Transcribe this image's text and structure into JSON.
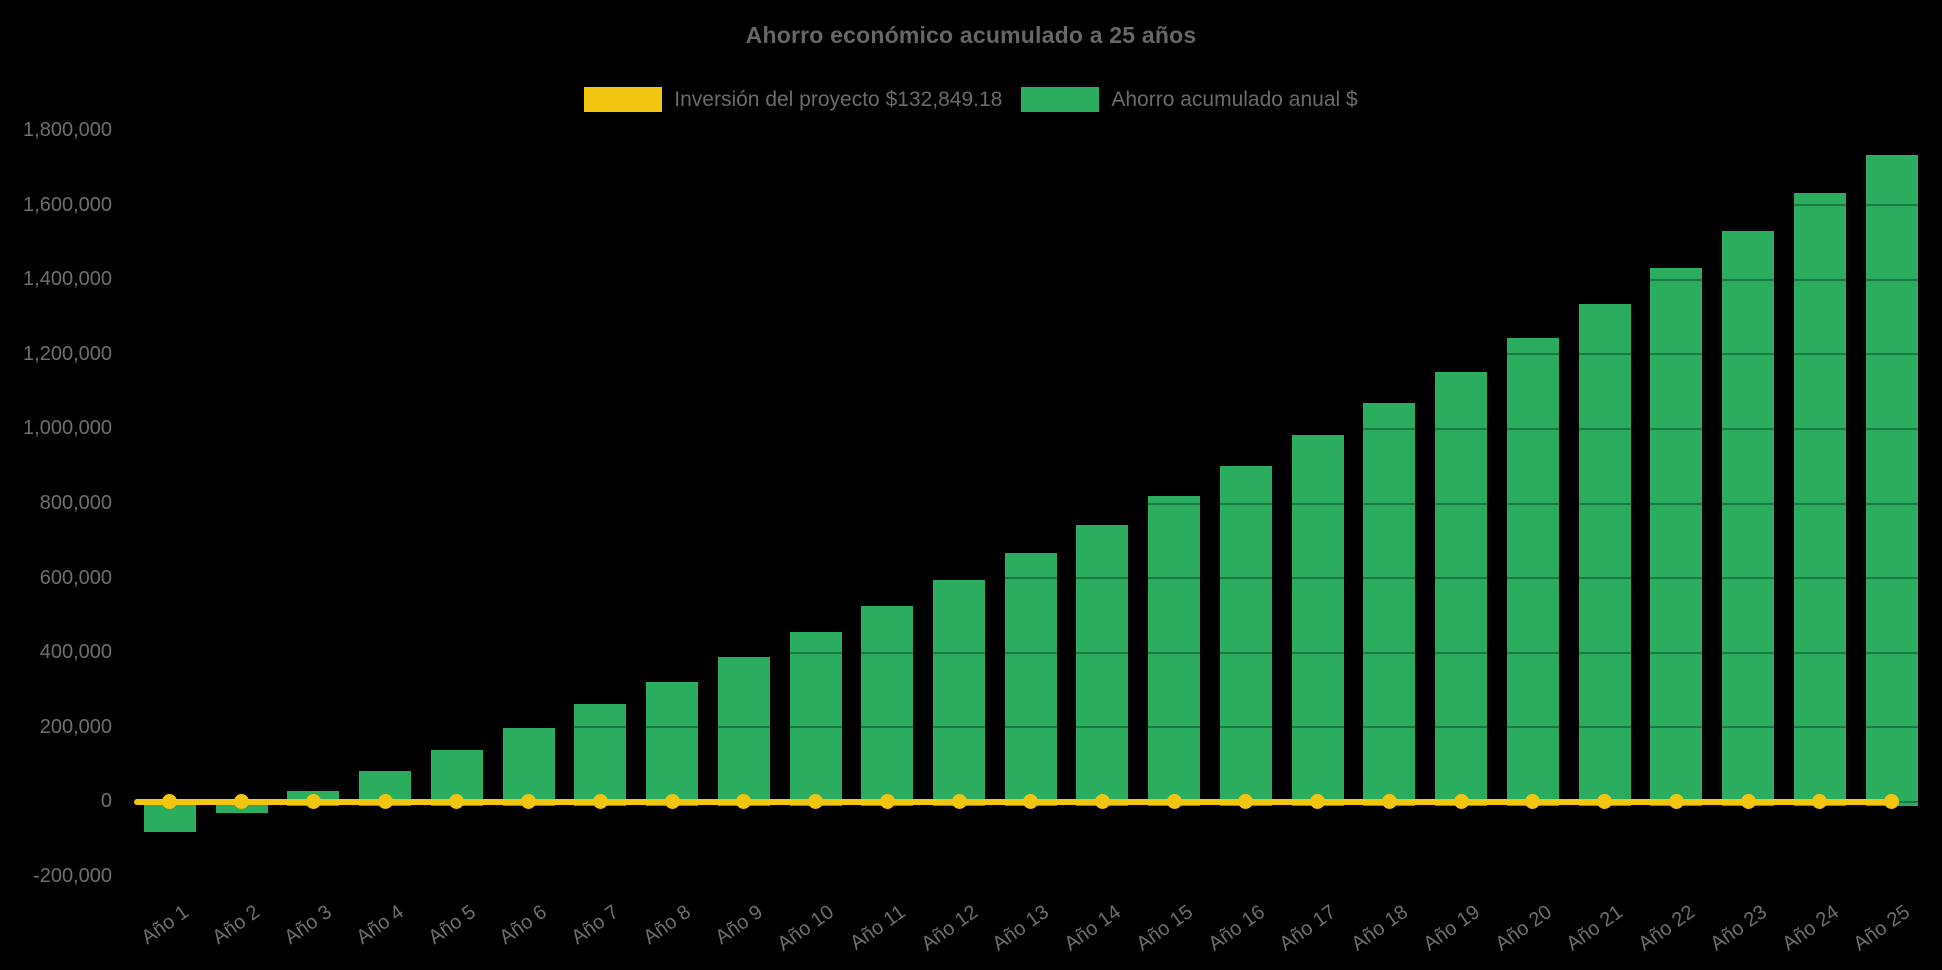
{
  "chart_data": {
    "type": "bar",
    "title": "Ahorro económico acumulado a 25 años",
    "background_color": "#000000",
    "text_color": "#6a6a6a",
    "legend_position": "top",
    "grid": "horizontal-faint",
    "categories": [
      "Año 1",
      "Año 2",
      "Año 3",
      "Año 4",
      "Año 5",
      "Año 6",
      "Año 7",
      "Año 8",
      "Año 9",
      "Año 10",
      "Año 11",
      "Año 12",
      "Año 13",
      "Año 14",
      "Año 15",
      "Año 16",
      "Año 17",
      "Año 18",
      "Año 19",
      "Año 20",
      "Año 21",
      "Año 22",
      "Año 23",
      "Año 24",
      "Año 25"
    ],
    "series": [
      {
        "name": "Inversión del proyecto $132,849.18",
        "type": "line",
        "color": "#f2c511",
        "values": [
          0,
          0,
          0,
          0,
          0,
          0,
          0,
          0,
          0,
          0,
          0,
          0,
          0,
          0,
          0,
          0,
          0,
          0,
          0,
          0,
          0,
          0,
          0,
          0,
          0
        ]
      },
      {
        "name": "Ahorro acumulado anual $",
        "type": "bar",
        "color": "#2bad60",
        "values": [
          -81000,
          -30000,
          28000,
          83000,
          140000,
          197000,
          261000,
          322000,
          387000,
          454000,
          524000,
          595000,
          668000,
          743000,
          820000,
          900000,
          984000,
          1070000,
          1154000,
          1244000,
          1335000,
          1431000,
          1530000,
          1632000,
          1736000
        ]
      }
    ],
    "ylim": [
      -200000,
      1800000
    ],
    "ytick_step": 200000,
    "ytick_format": "thousands-comma",
    "investment_amount_label": "$132,849.18"
  }
}
